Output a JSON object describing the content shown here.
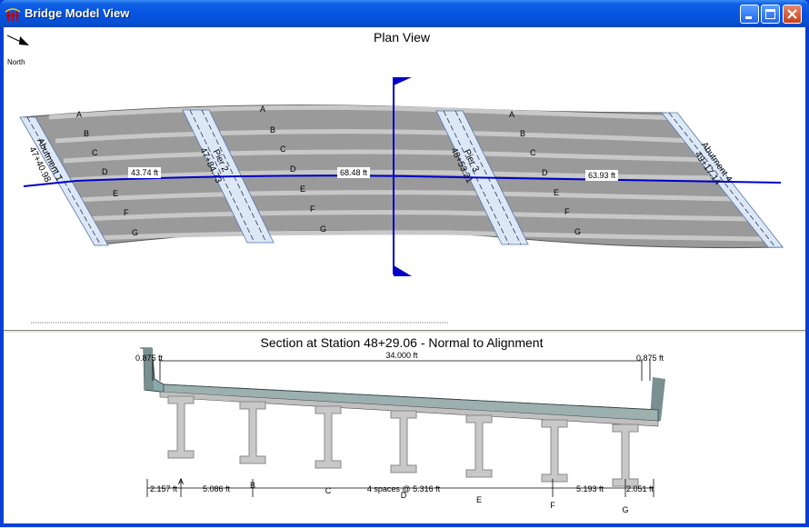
{
  "window": {
    "title": "Bridge Model View"
  },
  "plan": {
    "title": "Plan View",
    "north_label": "North",
    "girders": [
      "A",
      "B",
      "C",
      "D",
      "E",
      "F",
      "G"
    ],
    "supports": [
      {
        "name": "Abutment 1",
        "station": "47+40.98"
      },
      {
        "name": "Pier 2",
        "station": "47+84.73"
      },
      {
        "name": "Pier 3",
        "station": "48+53.21"
      },
      {
        "name": "Abutment 4",
        "station": "49+17.14"
      }
    ],
    "span_lengths": [
      "43.74 ft",
      "68.48 ft",
      "63.93 ft"
    ]
  },
  "section": {
    "title": "Section at Station 48+29.06 - Normal to Alignment",
    "left_barrier": "0.875 ft",
    "deck_width": "34.000 ft",
    "right_barrier": "0.875 ft",
    "girders": [
      "A",
      "B",
      "C",
      "D",
      "E",
      "F",
      "G"
    ],
    "spacing": [
      "2.157 ft",
      "5.086 ft",
      "4 spaces @ 5.316 ft",
      "5.193 ft",
      "2.051 ft"
    ]
  },
  "colors": {
    "alignment": "#0000c8",
    "deck": "#a0a0a0",
    "girder": "#c0c0c0",
    "bearing": "#dde8f6"
  }
}
